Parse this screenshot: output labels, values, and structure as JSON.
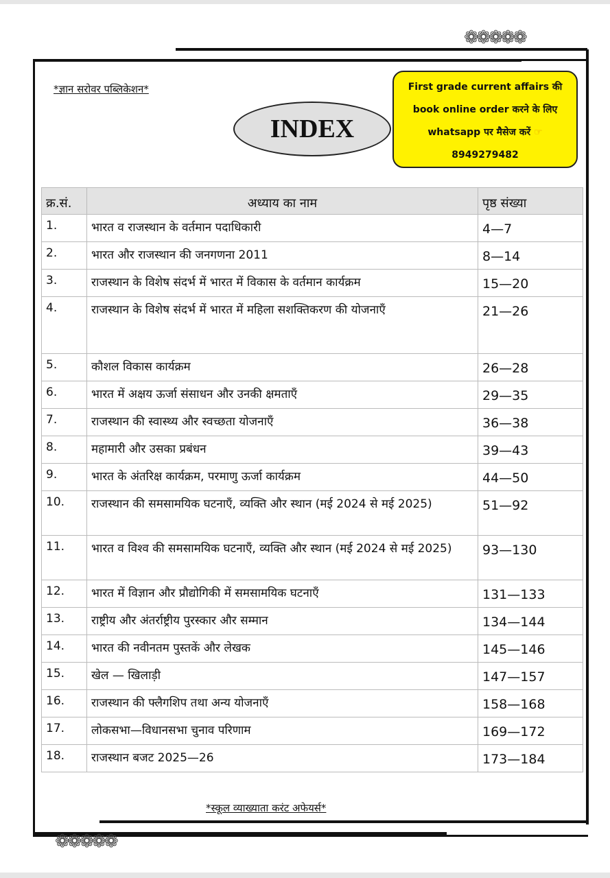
{
  "header": {
    "publisher": "*ज्ञान सरोवर पब्लिकेशन*",
    "title": "INDEX"
  },
  "promo": {
    "line1": "First grade current affairs की",
    "line2": "book online order करने के लिए",
    "line3": "whatsapp पर मैसेज करें",
    "icon": "pointing-hand-icon",
    "phone": "8949279482",
    "color": "#fff200"
  },
  "table": {
    "headers": [
      "क्र.सं.",
      "अध्याय का नाम",
      "पृष्ठ संख्या"
    ],
    "rows": [
      [
        "1.",
        "भारत व राजस्थान के वर्तमान पदाधिकारी",
        "4—7"
      ],
      [
        "2.",
        "भारत और राजस्थान की जनगणना 2011",
        "8—14"
      ],
      [
        "3.",
        "राजस्थान के विशेष संदर्भ में भारत में विकास के वर्तमान कार्यक्रम",
        "15—20"
      ],
      [
        "4.",
        "राजस्थान के विशेष संदर्भ में भारत में महिला सशक्तिकरण की योजनाएँ",
        "21—26"
      ],
      [
        "5.",
        "कौशल विकास कार्यक्रम",
        "26—28"
      ],
      [
        "6.",
        "भारत में अक्षय ऊर्जा संसाधन और उनकी क्षमताएँ",
        "29—35"
      ],
      [
        "7.",
        "राजस्थान की स्वास्थ्य और स्वच्छता योजनाएँ",
        "36—38"
      ],
      [
        "8.",
        "महामारी और उसका प्रबंधन",
        "39—43"
      ],
      [
        "9.",
        "भारत के अंतरिक्ष कार्यक्रम, परमाणु ऊर्जा कार्यक्रम",
        "44—50"
      ],
      [
        "10.",
        "राजस्थान की समसामयिक घटनाएँ, व्यक्ति और स्थान (मई 2024 से मई 2025)",
        "51—92"
      ],
      [
        "11.",
        "भारत व विश्व की समसामयिक घटनाएँ, व्यक्ति और स्थान (मई 2024 से मई 2025)",
        "93—130"
      ],
      [
        "12.",
        "भारत में विज्ञान और प्रौद्योगिकी में समसामयिक घटनाएँ",
        "131—133"
      ],
      [
        "13.",
        "राष्ट्रीय और अंतर्राष्ट्रीय पुरस्कार और सम्मान",
        "134—144"
      ],
      [
        "14.",
        "भारत की नवीनतम पुस्तकें और लेखक",
        "145—146"
      ],
      [
        "15.",
        "खेल — खिलाड़ी",
        "147—157"
      ],
      [
        "16.",
        "राजस्थान की फ्लैगशिप तथा अन्य योजनाएँ",
        "158—168"
      ],
      [
        "17.",
        "लोकसभा—विधानसभा चुनाव परिणाम",
        "169—172"
      ],
      [
        "18.",
        "राजस्थान बजट 2025—26",
        "173—184"
      ]
    ]
  },
  "footer": {
    "text": "*स्कूल व्याख्याता करंट अफेयर्स*"
  }
}
